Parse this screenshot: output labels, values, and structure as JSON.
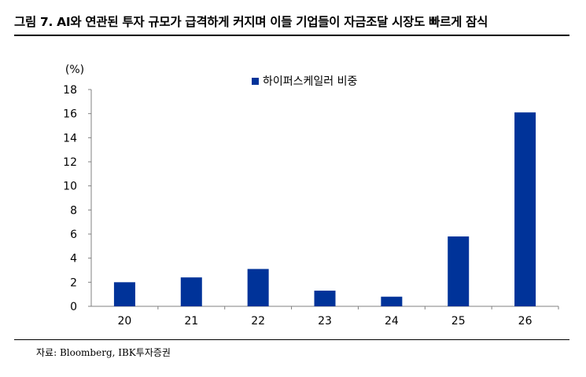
{
  "figure": {
    "title": "그림 7.  AI와 연관된 투자 규모가 급격하게 커지며 이들 기업들이 자금조달 시장도 빠르게 잠식",
    "source": "자료: Bloomberg, IBK투자증권"
  },
  "chart_data": {
    "type": "bar",
    "categories": [
      "20",
      "21",
      "22",
      "23",
      "24",
      "25",
      "26"
    ],
    "series": [
      {
        "name": "하이퍼스케일러 비중",
        "values": [
          2.0,
          2.4,
          3.1,
          1.3,
          0.8,
          5.8,
          16.1
        ],
        "color": "#003399"
      }
    ],
    "ylabel": "(%)",
    "ylim": [
      0,
      18
    ],
    "yticks": [
      0,
      2,
      4,
      6,
      8,
      10,
      12,
      14,
      16,
      18
    ],
    "grid": false,
    "legend_position": "top-center"
  }
}
